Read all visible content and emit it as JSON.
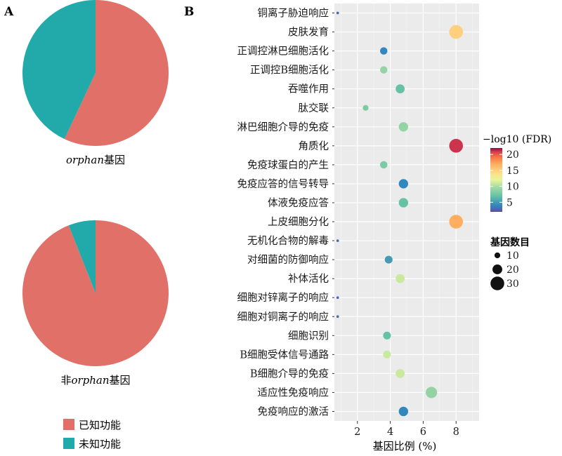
{
  "panels": {
    "a_label": "A",
    "b_label": "B"
  },
  "chart_data": [
    {
      "type": "pie",
      "caption_italic": "orphan",
      "caption_suffix": "基因",
      "slices": [
        {
          "label": "已知功能",
          "value": 57,
          "color": "#E07068"
        },
        {
          "label": "未知功能",
          "value": 43,
          "color": "#22AAAA"
        }
      ]
    },
    {
      "type": "pie",
      "caption_prefix": "非",
      "caption_italic": "orphan",
      "caption_suffix": "基因",
      "slices": [
        {
          "label": "已知功能",
          "value": 94,
          "color": "#E07068"
        },
        {
          "label": "未知功能",
          "value": 6,
          "color": "#22AAAA"
        }
      ]
    },
    {
      "type": "scatter",
      "xlabel": "基因比例 (%)",
      "xlim": [
        0.6,
        9.4
      ],
      "xticks": [
        2,
        4,
        6,
        8
      ],
      "grid": true,
      "color_legend": {
        "title": "−log10 (FDR)",
        "min": 2,
        "max": 22,
        "ticks": [
          5,
          10,
          15,
          20
        ]
      },
      "size_legend": {
        "title": "基因数目",
        "values": [
          10,
          20,
          30
        ]
      },
      "points": [
        {
          "term": "铜离子胁迫响应",
          "x": 0.8,
          "fdr": 3,
          "count": 2
        },
        {
          "term": "皮肤发育",
          "x": 8.0,
          "fdr": 15,
          "count": 30
        },
        {
          "term": "正调控淋巴细胞活化",
          "x": 3.6,
          "fdr": 4,
          "count": 14
        },
        {
          "term": "正调控B细胞活化",
          "x": 3.6,
          "fdr": 9,
          "count": 14
        },
        {
          "term": "吞噬作用",
          "x": 4.6,
          "fdr": 7,
          "count": 18
        },
        {
          "term": "肽交联",
          "x": 2.5,
          "fdr": 8,
          "count": 10
        },
        {
          "term": "淋巴细胞介导的免疫",
          "x": 4.8,
          "fdr": 9,
          "count": 19
        },
        {
          "term": "角质化",
          "x": 8.0,
          "fdr": 21,
          "count": 30
        },
        {
          "term": "免疫球蛋白的产生",
          "x": 3.6,
          "fdr": 8,
          "count": 14
        },
        {
          "term": "免疫应答的信号转导",
          "x": 4.8,
          "fdr": 4,
          "count": 19
        },
        {
          "term": "体液免疫应答",
          "x": 4.8,
          "fdr": 7,
          "count": 19
        },
        {
          "term": "上皮细胞分化",
          "x": 8.0,
          "fdr": 17,
          "count": 30
        },
        {
          "term": "无机化合物的解毒",
          "x": 0.8,
          "fdr": 3,
          "count": 2
        },
        {
          "term": "对细菌的防御响应",
          "x": 3.9,
          "fdr": 5,
          "count": 15
        },
        {
          "term": "补体活化",
          "x": 4.6,
          "fdr": 11,
          "count": 18
        },
        {
          "term": "细胞对锌离子的响应",
          "x": 0.8,
          "fdr": 3,
          "count": 2
        },
        {
          "term": "细胞对铜离子的响应",
          "x": 0.8,
          "fdr": 3,
          "count": 2
        },
        {
          "term": "细胞识别",
          "x": 3.8,
          "fdr": 7,
          "count": 15
        },
        {
          "term": "B细胞受体信号通路",
          "x": 3.8,
          "fdr": 11,
          "count": 15
        },
        {
          "term": "B细胞介导的免疫",
          "x": 4.6,
          "fdr": 11,
          "count": 18
        },
        {
          "term": "适应性免疫响应",
          "x": 6.5,
          "fdr": 9,
          "count": 24
        },
        {
          "term": "免疫响应的激活",
          "x": 4.8,
          "fdr": 4,
          "count": 19
        }
      ]
    }
  ],
  "legend": [
    {
      "label": "已知功能",
      "color": "#E07068"
    },
    {
      "label": "未知功能",
      "color": "#22AAAA"
    }
  ]
}
